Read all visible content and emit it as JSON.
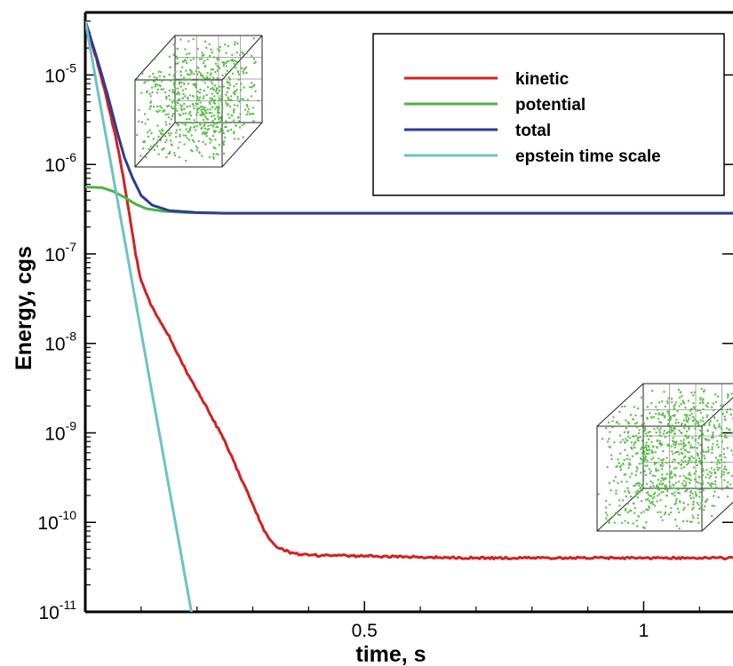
{
  "chart_data": {
    "type": "line",
    "title": "",
    "xlabel": "time, s",
    "ylabel": "Energy, cgs",
    "xlim": [
      0,
      1.16
    ],
    "ylim": [
      1e-11,
      5e-05
    ],
    "yscale": "log",
    "x_ticks": [
      {
        "value": 0.5,
        "label": "0.5"
      },
      {
        "value": 1.0,
        "label": "1"
      }
    ],
    "y_ticks": [
      {
        "value": 1e-11,
        "base": "10",
        "exp": "-11"
      },
      {
        "value": 1e-10,
        "base": "10",
        "exp": "-10"
      },
      {
        "value": 1e-09,
        "base": "10",
        "exp": "-9"
      },
      {
        "value": 1e-08,
        "base": "10",
        "exp": "-8"
      },
      {
        "value": 1e-07,
        "base": "10",
        "exp": "-7"
      },
      {
        "value": 1e-06,
        "base": "10",
        "exp": "-6"
      },
      {
        "value": 1e-05,
        "base": "10",
        "exp": "-5"
      }
    ],
    "legend_position": "top-right",
    "series": [
      {
        "name": "kinetic",
        "color": "#d42020",
        "points": [
          [
            0,
            4e-05
          ],
          [
            0.02,
            1.5e-05
          ],
          [
            0.04,
            5e-06
          ],
          [
            0.06,
            1.4e-06
          ],
          [
            0.07,
            6e-07
          ],
          [
            0.08,
            2.5e-07
          ],
          [
            0.09,
            1e-07
          ],
          [
            0.1,
            5e-08
          ],
          [
            0.12,
            2.5e-08
          ],
          [
            0.15,
            1.2e-08
          ],
          [
            0.18,
            5e-09
          ],
          [
            0.2,
            3e-09
          ],
          [
            0.22,
            1.8e-09
          ],
          [
            0.25,
            8e-10
          ],
          [
            0.28,
            3e-10
          ],
          [
            0.3,
            1.6e-10
          ],
          [
            0.32,
            8e-11
          ],
          [
            0.34,
            5.5e-11
          ],
          [
            0.37,
            4.5e-11
          ],
          [
            0.4,
            4.3e-11
          ],
          [
            0.5,
            4.2e-11
          ],
          [
            0.6,
            4.1e-11
          ],
          [
            0.7,
            4e-11
          ],
          [
            0.8,
            4e-11
          ],
          [
            0.9,
            4e-11
          ],
          [
            1.0,
            4e-11
          ],
          [
            1.1,
            4e-11
          ],
          [
            1.16,
            4e-11
          ]
        ]
      },
      {
        "name": "potential",
        "color": "#4bb344",
        "points": [
          [
            0,
            5.6e-07
          ],
          [
            0.03,
            5.5e-07
          ],
          [
            0.05,
            5e-07
          ],
          [
            0.07,
            4.3e-07
          ],
          [
            0.09,
            3.6e-07
          ],
          [
            0.11,
            3.2e-07
          ],
          [
            0.14,
            3e-07
          ],
          [
            0.18,
            2.9e-07
          ],
          [
            0.25,
            2.85e-07
          ],
          [
            0.5,
            2.85e-07
          ],
          [
            1.16,
            2.85e-07
          ]
        ]
      },
      {
        "name": "total",
        "color": "#2c3c96",
        "points": [
          [
            0,
            4e-05
          ],
          [
            0.02,
            1.6e-05
          ],
          [
            0.04,
            6e-06
          ],
          [
            0.055,
            2.6e-06
          ],
          [
            0.07,
            1.2e-06
          ],
          [
            0.085,
            7e-07
          ],
          [
            0.1,
            4.5e-07
          ],
          [
            0.12,
            3.5e-07
          ],
          [
            0.15,
            3.05e-07
          ],
          [
            0.2,
            2.9e-07
          ],
          [
            0.25,
            2.85e-07
          ],
          [
            0.5,
            2.85e-07
          ],
          [
            1.16,
            2.85e-07
          ]
        ]
      },
      {
        "name": "epstein time scale",
        "color": "#6cc3c6",
        "points": [
          [
            0,
            4e-05
          ],
          [
            0.19,
            1e-11
          ]
        ]
      }
    ]
  }
}
